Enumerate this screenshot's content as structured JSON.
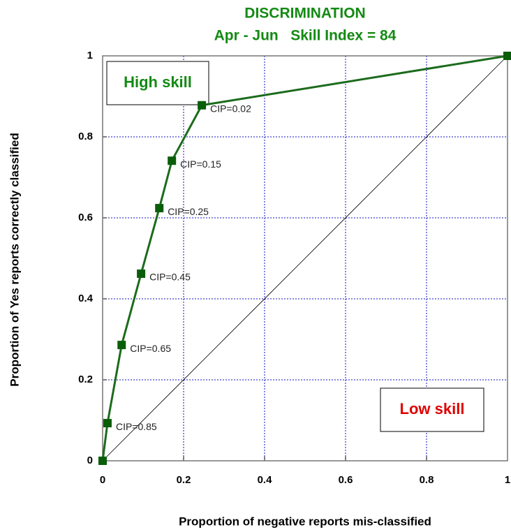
{
  "chart_data": {
    "type": "line",
    "title": "DISCRIMINATION",
    "subtitle": "Apr - Jun   Skill Index = 84",
    "x_label": "Proportion of negative reports mis-classified",
    "y_label": "Proportion of Yes reports correctly classified",
    "x": [
      0,
      0.012,
      0.047,
      0.095,
      0.14,
      0.171,
      0.245,
      1
    ],
    "series": [
      {
        "name": "ROC",
        "color": "#1c6b1c",
        "values": [
          0,
          0.093,
          0.286,
          0.462,
          0.624,
          0.741,
          0.878,
          1
        ],
        "point_labels": [
          null,
          "CIP=0.85",
          "CIP=0.65",
          "CIP=0.45",
          "CIP=0.25",
          "CIP=0.15",
          "CIP=0.02",
          null
        ]
      }
    ],
    "xlim": [
      0,
      1
    ],
    "ylim": [
      0,
      1
    ],
    "xticks": [
      0,
      0.2,
      0.4,
      0.6,
      0.8,
      1
    ],
    "yticks": [
      0,
      0.2,
      0.4,
      0.6,
      0.8,
      1
    ],
    "grid": true,
    "annotations": [
      {
        "text": "High skill",
        "color": "#138a13",
        "corner": "upper left"
      },
      {
        "text": "Low skill",
        "color": "#e00000",
        "corner": "lower right"
      }
    ]
  }
}
